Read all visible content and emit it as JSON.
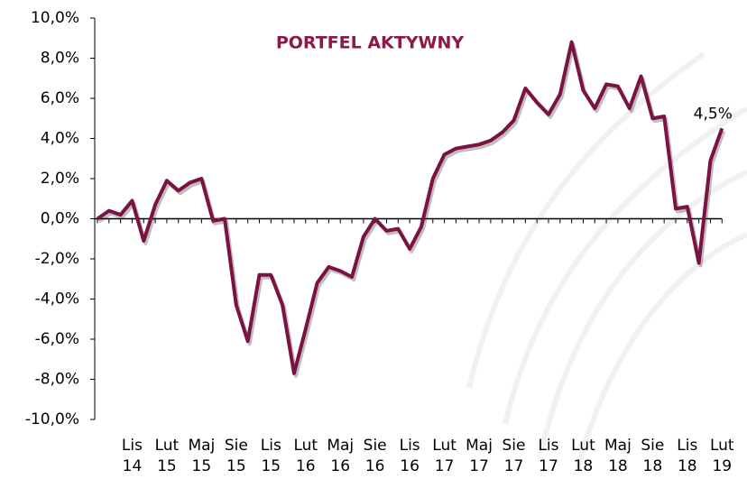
{
  "chart_data": {
    "type": "line",
    "title": "PORTFEL AKTYWNY",
    "categories": [
      null,
      null,
      null,
      "Lis 14",
      null,
      null,
      "Lut 15",
      null,
      null,
      "Maj 15",
      null,
      null,
      "Sie 15",
      null,
      null,
      "Lis 15",
      null,
      null,
      "Lut 16",
      null,
      null,
      "Maj 16",
      null,
      null,
      "Sie 16",
      null,
      null,
      "Lis 16",
      null,
      null,
      "Lut 17",
      null,
      null,
      "Maj 17",
      null,
      null,
      "Sie 17",
      null,
      null,
      "Lis 17",
      null,
      null,
      "Lut 18",
      null,
      null,
      "Maj 18",
      null,
      null,
      "Sie 18",
      null,
      null,
      "Lis 18",
      null,
      null,
      "Lut 19"
    ],
    "values": [
      0.0,
      0.4,
      0.2,
      0.9,
      -1.1,
      0.7,
      1.9,
      1.4,
      1.8,
      2.0,
      -0.1,
      0.0,
      -4.3,
      -6.1,
      -2.8,
      -2.8,
      -4.3,
      -7.7,
      -5.5,
      -3.2,
      -2.4,
      -2.6,
      -2.9,
      -0.9,
      0.0,
      -0.6,
      -0.5,
      -1.5,
      -0.4,
      2.0,
      3.2,
      3.5,
      3.6,
      3.7,
      3.9,
      4.3,
      4.9,
      6.5,
      5.8,
      5.2,
      6.2,
      8.8,
      6.4,
      5.5,
      6.7,
      6.6,
      5.5,
      7.1,
      5.0,
      5.1,
      0.5,
      0.6,
      -2.2,
      2.9,
      4.5
    ],
    "value_labels": [
      null,
      null,
      null,
      null,
      null,
      null,
      null,
      null,
      null,
      null,
      null,
      null,
      null,
      null,
      null,
      null,
      null,
      null,
      null,
      null,
      null,
      null,
      null,
      null,
      null,
      null,
      null,
      null,
      null,
      null,
      null,
      null,
      null,
      null,
      null,
      null,
      null,
      null,
      null,
      null,
      null,
      null,
      null,
      null,
      null,
      null,
      null,
      null,
      null,
      null,
      null,
      null,
      null,
      null,
      "4,5%"
    ],
    "color": "#7b1242",
    "ylim": [
      -10,
      10
    ],
    "yticks": [
      {
        "value": -10,
        "label": "-10,0%"
      },
      {
        "value": -8,
        "label": "-8,0%"
      },
      {
        "value": -6,
        "label": "-6,0%"
      },
      {
        "value": -4,
        "label": "-4,0%"
      },
      {
        "value": -2,
        "label": "-2,0%"
      },
      {
        "value": 0,
        "label": "0,0%"
      },
      {
        "value": 2,
        "label": "2,0%"
      },
      {
        "value": 4,
        "label": "4,0%"
      },
      {
        "value": 6,
        "label": "6,0%"
      },
      {
        "value": 8,
        "label": "8,0%"
      },
      {
        "value": 10,
        "label": "10,0%"
      }
    ]
  }
}
